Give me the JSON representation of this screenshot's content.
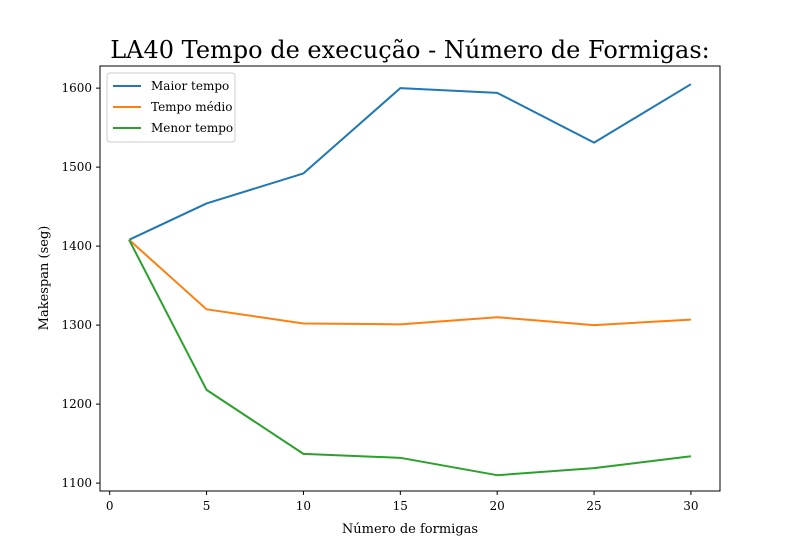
{
  "chart_data": {
    "type": "line",
    "title": "LA40 Tempo de execução - Número de Formigas:",
    "xlabel": "Número de formigas",
    "ylabel": "Makespan (seg)",
    "xlim": [
      -0.5,
      31.5
    ],
    "ylim": [
      1090,
      1628
    ],
    "xticks": [
      0,
      5,
      10,
      15,
      20,
      25,
      30
    ],
    "yticks": [
      1100,
      1200,
      1300,
      1400,
      1500,
      1600
    ],
    "x": [
      1,
      5,
      10,
      15,
      20,
      25,
      30
    ],
    "series": [
      {
        "name": "Maior tempo",
        "color": "#1f77b4",
        "values": [
          1408,
          1454,
          1492,
          1600,
          1594,
          1531,
          1605
        ]
      },
      {
        "name": "Tempo médio",
        "color": "#ff7f0e",
        "values": [
          1408,
          1320,
          1302,
          1301,
          1310,
          1300,
          1307
        ]
      },
      {
        "name": "Menor tempo",
        "color": "#2ca02c",
        "values": [
          1408,
          1218,
          1137,
          1132,
          1110,
          1119,
          1134
        ]
      }
    ],
    "legend_position": "top-left",
    "grid": false
  }
}
